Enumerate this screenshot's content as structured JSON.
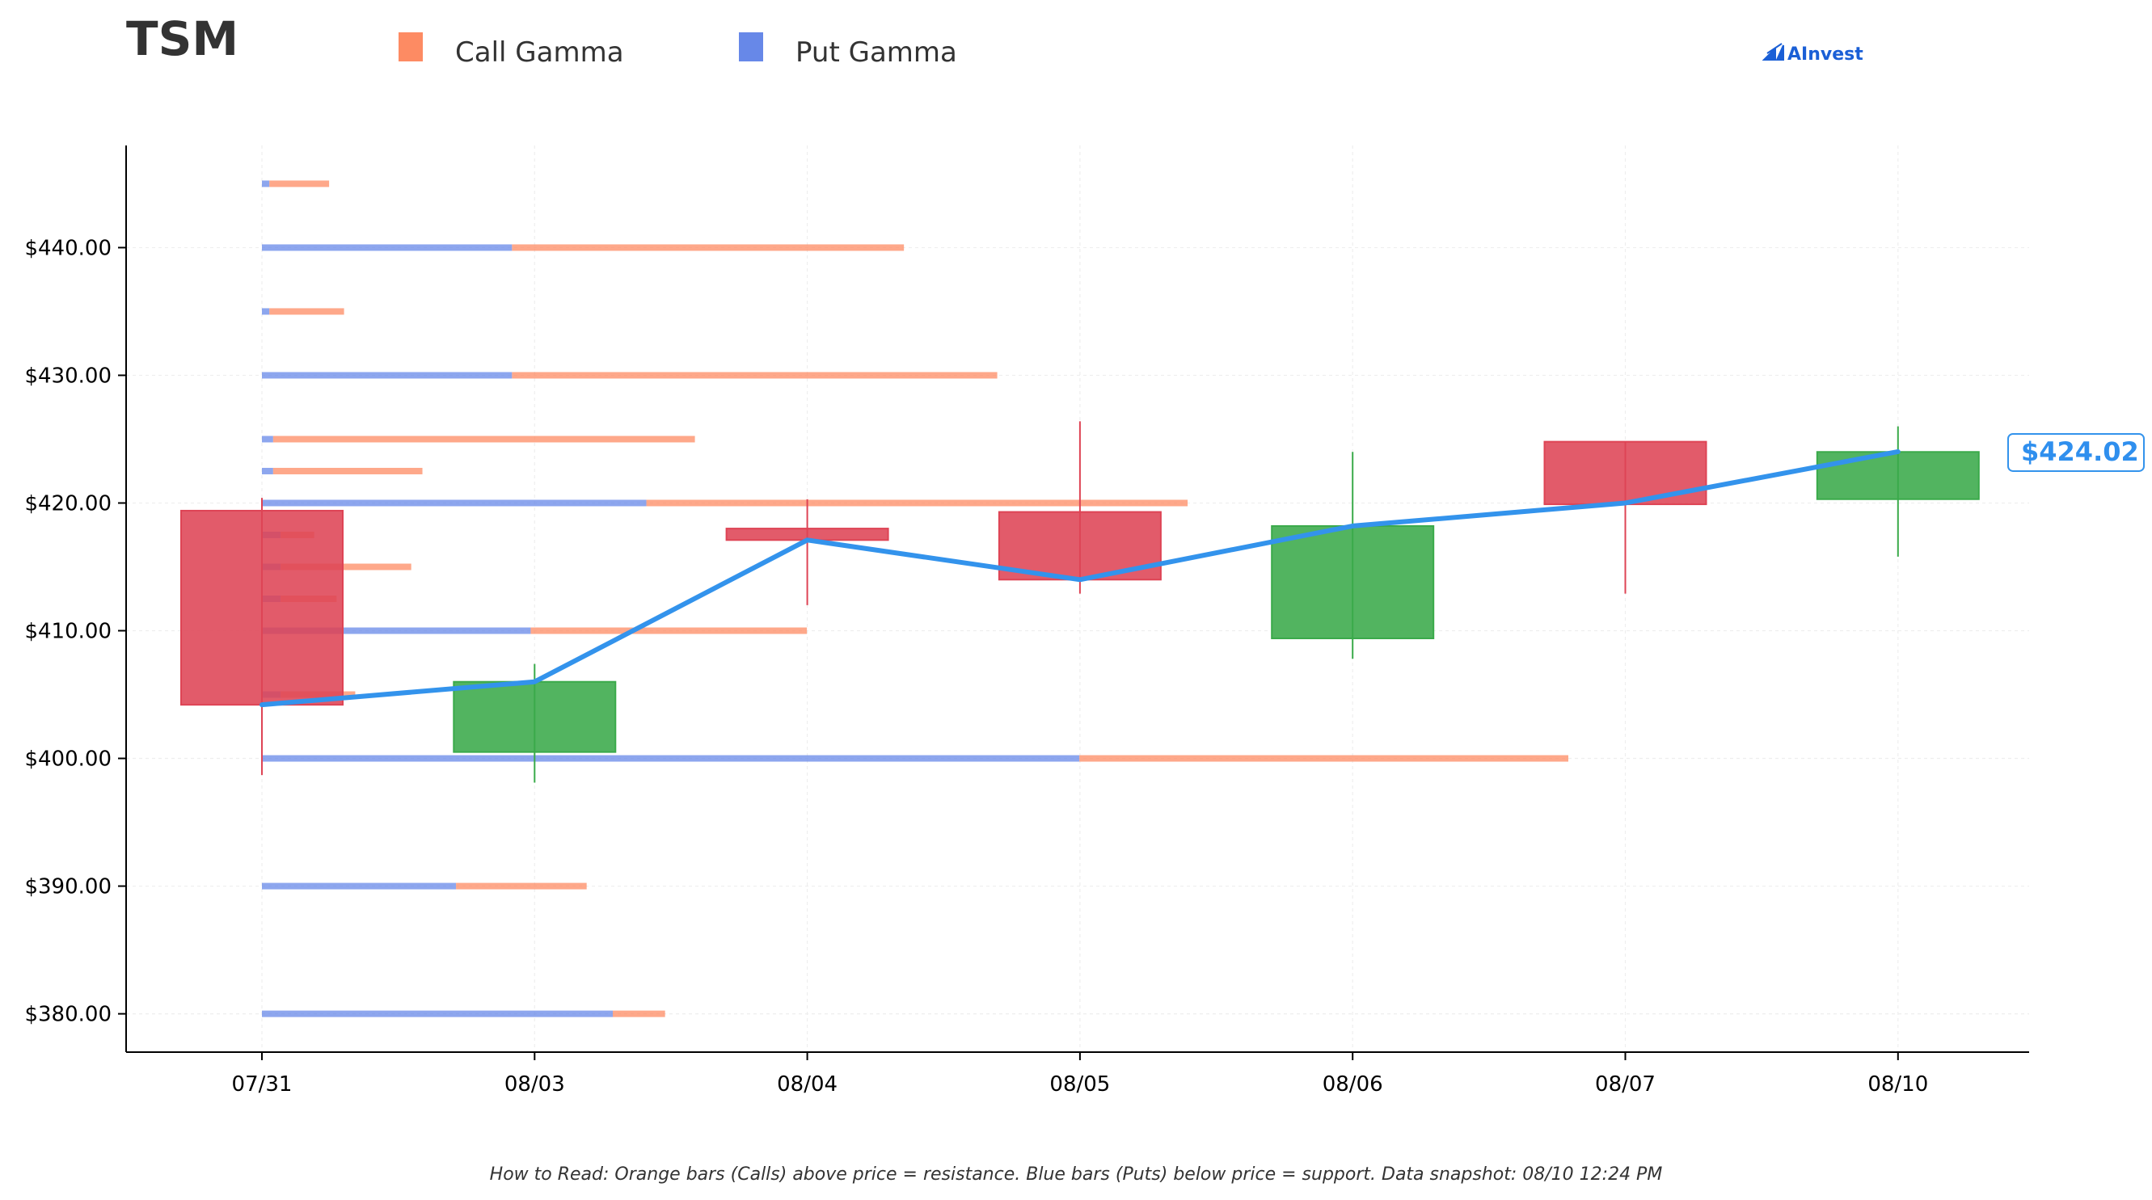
{
  "ticker": "TSM",
  "brand": "AInvest",
  "note": "How to Read: Orange bars (Calls) above price = resistance. Blue bars (Puts) below price = support. Data snapshot: 08/10 12:24 PM",
  "legend": [
    {
      "label": "Call Gamma",
      "color": "#fd8b63"
    },
    {
      "label": "Put Gamma",
      "color": "#6788e8"
    }
  ],
  "colors": {
    "up": "#3aaa4a",
    "down": "#de4455",
    "price_line": "#3393ec",
    "call": "#fd8b63",
    "put": "#6788e8"
  },
  "chart_data": {
    "type": "candlestick",
    "categories": [
      "07/31",
      "08/03",
      "08/04",
      "08/05",
      "08/06",
      "08/07",
      "08/10"
    ],
    "ylim": [
      377,
      448
    ],
    "yticks": [
      380,
      390,
      400,
      410,
      420,
      430,
      440
    ],
    "ytick_labels": [
      "$380.00",
      "$390.00",
      "$400.00",
      "$410.00",
      "$420.00",
      "$430.00",
      "$440.00"
    ],
    "candles": [
      {
        "date": "07/31",
        "open": 419.4,
        "high": 420.4,
        "low": 398.7,
        "close": 404.2
      },
      {
        "date": "08/03",
        "open": 400.5,
        "high": 407.4,
        "low": 398.1,
        "close": 406.0
      },
      {
        "date": "08/04",
        "open": 418.0,
        "high": 420.3,
        "low": 412.0,
        "close": 417.1
      },
      {
        "date": "08/05",
        "open": 419.3,
        "high": 426.4,
        "low": 412.9,
        "close": 414.0
      },
      {
        "date": "08/06",
        "open": 409.4,
        "high": 424.0,
        "low": 407.8,
        "close": 418.2
      },
      {
        "date": "08/07",
        "open": 424.8,
        "high": 424.8,
        "low": 412.9,
        "close": 419.9
      },
      {
        "date": "08/10",
        "open": 420.3,
        "high": 426.0,
        "low": 415.8,
        "close": 424.0
      }
    ],
    "price_line": [
      404.2,
      406.0,
      417.1,
      414.0,
      418.2,
      420.0,
      424.02
    ],
    "last_price_label": "$424.02",
    "gamma_x_max": 3.5,
    "gamma": [
      {
        "strike": 445.0,
        "put": 0.02,
        "call": 0.16
      },
      {
        "strike": 440.0,
        "put": 0.67,
        "call": 1.05
      },
      {
        "strike": 435.0,
        "put": 0.02,
        "call": 0.2
      },
      {
        "strike": 430.0,
        "put": 0.67,
        "call": 1.3
      },
      {
        "strike": 425.0,
        "put": 0.03,
        "call": 1.13
      },
      {
        "strike": 422.5,
        "put": 0.03,
        "call": 0.4
      },
      {
        "strike": 420.0,
        "put": 1.03,
        "call": 1.45
      },
      {
        "strike": 417.5,
        "put": 0.05,
        "call": 0.09
      },
      {
        "strike": 415.0,
        "put": 0.05,
        "call": 0.35
      },
      {
        "strike": 412.5,
        "put": 0.05,
        "call": 0.15
      },
      {
        "strike": 410.0,
        "put": 0.72,
        "call": 0.74
      },
      {
        "strike": 405.0,
        "put": 0.05,
        "call": 0.2
      },
      {
        "strike": 400.0,
        "put": 2.19,
        "call": 1.31
      },
      {
        "strike": 390.0,
        "put": 0.52,
        "call": 0.35
      },
      {
        "strike": 380.0,
        "put": 0.94,
        "call": 0.14
      }
    ]
  }
}
